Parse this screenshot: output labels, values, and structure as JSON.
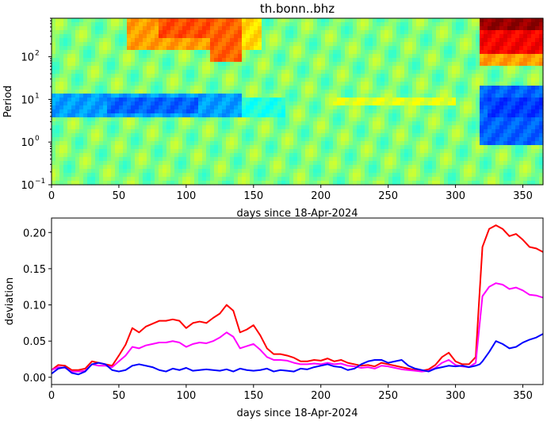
{
  "title": "th.bonn..bhz",
  "chart_data": [
    {
      "type": "heatmap",
      "title": "th.bonn..bhz",
      "xlabel": "days since 18-Apr-2024",
      "ylabel": "Period",
      "xlim": [
        0,
        365
      ],
      "ylim": [
        0.1,
        800
      ],
      "yscale": "log",
      "xticks": [
        0,
        50,
        100,
        150,
        200,
        250,
        300,
        350
      ],
      "xtick_labels": [
        "0",
        "50",
        "100",
        "150",
        "200",
        "250",
        "300",
        "350"
      ],
      "yticks": [
        0.1,
        1,
        10,
        100
      ],
      "ytick_labels": [
        "10",
        "10",
        "10",
        "10"
      ],
      "ytick_exponents": [
        "−1",
        "0",
        "1",
        "2"
      ],
      "colormap": "jet",
      "value_range": [
        0,
        1
      ],
      "regions": [
        {
          "x": [
            55,
            135
          ],
          "period": [
            150,
            800
          ],
          "value": 0.72
        },
        {
          "x": [
            80,
            140
          ],
          "period": [
            250,
            800
          ],
          "value": 0.8
        },
        {
          "x": [
            118,
            140
          ],
          "period": [
            80,
            800
          ],
          "value": 0.78
        },
        {
          "x": [
            140,
            155
          ],
          "period": [
            150,
            800
          ],
          "value": 0.66
        },
        {
          "x": [
            318,
            365
          ],
          "period": [
            400,
            800
          ],
          "value": 0.98
        },
        {
          "x": [
            318,
            365
          ],
          "period": [
            110,
            400
          ],
          "value": 0.88
        },
        {
          "x": [
            318,
            365
          ],
          "period": [
            60,
            110
          ],
          "value": 0.72
        },
        {
          "x": [
            0,
            140
          ],
          "period": [
            4,
            13
          ],
          "value": 0.28
        },
        {
          "x": [
            40,
            110
          ],
          "period": [
            5,
            10
          ],
          "value": 0.22
        },
        {
          "x": [
            140,
            175
          ],
          "period": [
            4,
            11
          ],
          "value": 0.4
        },
        {
          "x": [
            318,
            365
          ],
          "period": [
            0.8,
            20
          ],
          "value": 0.22
        },
        {
          "x": [
            325,
            365
          ],
          "period": [
            4,
            12
          ],
          "value": 0.18
        },
        {
          "x": [
            205,
            300
          ],
          "period": [
            7,
            10
          ],
          "value": 0.6
        }
      ]
    },
    {
      "type": "line",
      "xlabel": "days since 18-Apr-2024",
      "ylabel": "deviation",
      "xlim": [
        0,
        365
      ],
      "ylim": [
        -0.01,
        0.22
      ],
      "xticks": [
        0,
        50,
        100,
        150,
        200,
        250,
        300,
        350
      ],
      "xtick_labels": [
        "0",
        "50",
        "100",
        "150",
        "200",
        "250",
        "300",
        "350"
      ],
      "yticks": [
        0.0,
        0.05,
        0.1,
        0.15,
        0.2
      ],
      "ytick_labels": [
        "0.00",
        "0.05",
        "0.10",
        "0.15",
        "0.20"
      ],
      "x": [
        0,
        5,
        10,
        15,
        20,
        25,
        30,
        35,
        40,
        45,
        50,
        55,
        60,
        65,
        70,
        75,
        80,
        85,
        90,
        95,
        100,
        105,
        110,
        115,
        120,
        125,
        130,
        135,
        140,
        145,
        150,
        155,
        160,
        165,
        170,
        175,
        180,
        185,
        190,
        195,
        200,
        205,
        210,
        215,
        220,
        225,
        230,
        235,
        240,
        245,
        250,
        255,
        260,
        265,
        270,
        275,
        280,
        285,
        290,
        295,
        300,
        305,
        310,
        315,
        318,
        320,
        325,
        330,
        335,
        340,
        345,
        350,
        355,
        360,
        365
      ],
      "series": [
        {
          "color": "#ff0000",
          "values": [
            0.01,
            0.017,
            0.016,
            0.01,
            0.01,
            0.012,
            0.022,
            0.02,
            0.018,
            0.016,
            0.03,
            0.045,
            0.068,
            0.062,
            0.07,
            0.074,
            0.078,
            0.078,
            0.08,
            0.078,
            0.068,
            0.075,
            0.077,
            0.075,
            0.082,
            0.088,
            0.1,
            0.092,
            0.062,
            0.066,
            0.072,
            0.058,
            0.04,
            0.032,
            0.032,
            0.03,
            0.027,
            0.022,
            0.022,
            0.024,
            0.023,
            0.026,
            0.022,
            0.024,
            0.02,
            0.018,
            0.016,
            0.017,
            0.015,
            0.02,
            0.018,
            0.016,
            0.014,
            0.012,
            0.01,
            0.009,
            0.011,
            0.017,
            0.028,
            0.034,
            0.022,
            0.018,
            0.018,
            0.028,
            0.12,
            0.18,
            0.205,
            0.21,
            0.205,
            0.195,
            0.198,
            0.19,
            0.18,
            0.178,
            0.173
          ]
        },
        {
          "color": "#ff00ff",
          "values": [
            0.01,
            0.014,
            0.013,
            0.008,
            0.008,
            0.009,
            0.018,
            0.016,
            0.016,
            0.014,
            0.022,
            0.03,
            0.042,
            0.04,
            0.044,
            0.046,
            0.048,
            0.048,
            0.05,
            0.048,
            0.042,
            0.046,
            0.048,
            0.047,
            0.05,
            0.055,
            0.062,
            0.056,
            0.04,
            0.043,
            0.046,
            0.038,
            0.028,
            0.024,
            0.024,
            0.023,
            0.02,
            0.018,
            0.018,
            0.019,
            0.018,
            0.02,
            0.018,
            0.019,
            0.016,
            0.015,
            0.013,
            0.014,
            0.012,
            0.016,
            0.015,
            0.013,
            0.011,
            0.01,
            0.009,
            0.008,
            0.009,
            0.013,
            0.02,
            0.024,
            0.017,
            0.015,
            0.014,
            0.02,
            0.075,
            0.112,
            0.125,
            0.13,
            0.128,
            0.122,
            0.124,
            0.12,
            0.114,
            0.113,
            0.11
          ]
        },
        {
          "color": "#0000ff",
          "values": [
            0.005,
            0.012,
            0.014,
            0.006,
            0.004,
            0.008,
            0.018,
            0.02,
            0.018,
            0.01,
            0.008,
            0.01,
            0.016,
            0.018,
            0.016,
            0.014,
            0.01,
            0.008,
            0.012,
            0.01,
            0.013,
            0.009,
            0.01,
            0.011,
            0.01,
            0.009,
            0.011,
            0.008,
            0.012,
            0.01,
            0.009,
            0.01,
            0.012,
            0.008,
            0.01,
            0.009,
            0.008,
            0.012,
            0.011,
            0.014,
            0.016,
            0.018,
            0.015,
            0.014,
            0.01,
            0.012,
            0.018,
            0.022,
            0.024,
            0.024,
            0.02,
            0.022,
            0.024,
            0.016,
            0.012,
            0.01,
            0.008,
            0.012,
            0.014,
            0.016,
            0.015,
            0.016,
            0.014,
            0.016,
            0.018,
            0.022,
            0.035,
            0.05,
            0.046,
            0.04,
            0.042,
            0.048,
            0.052,
            0.055,
            0.06
          ]
        }
      ]
    }
  ]
}
